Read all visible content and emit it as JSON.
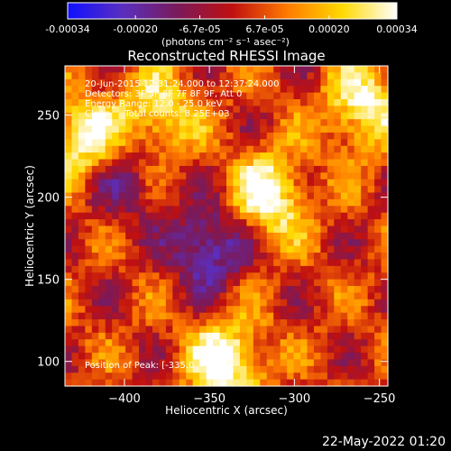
{
  "colorbar": {
    "ticks": [
      "-0.00034",
      "-0.00020",
      "-6.7e-05",
      "6.7e-05",
      "0.00020",
      "0.00034"
    ],
    "tick_values": [
      -0.00034,
      -0.0002,
      -6.7e-05,
      6.7e-05,
      0.0002,
      0.00034
    ],
    "units": "(photons cm⁻² s⁻¹ asec⁻²)",
    "colors": [
      "#1010ff",
      "#5a2fc0",
      "#7a1a5a",
      "#c01010",
      "#ff7a00",
      "#ffd900",
      "#ffffff"
    ]
  },
  "title": "Reconstructed RHESSI Image",
  "annotations": {
    "time_range": "20-Jun-2015 12:31:24.000 to 12:37:24.000",
    "detectors": "Detectors: 3F 5F 6F 7F 8F 9F, Att 0",
    "energy_range": "Energy Range: 12.0 - 25.0 keV",
    "clean_counts": "Clean     Total counts: 8.25E+03",
    "peak_position": "Position of Peak: [-335.0"
  },
  "chart_data": {
    "type": "heatmap",
    "title": "Reconstructed RHESSI Image",
    "xlabel": "Heliocentric X (arcsec)",
    "ylabel": "Heliocentric Y (arcsec)",
    "xlim": [
      -435,
      -245
    ],
    "ylim": [
      85,
      280
    ],
    "x_ticks": [
      -400,
      -350,
      -300,
      -250
    ],
    "y_ticks": [
      100,
      150,
      200,
      250
    ],
    "x_tick_labels": [
      "−400",
      "−350",
      "−300",
      "−250"
    ],
    "y_tick_labels": [
      "100",
      "150",
      "200",
      "250"
    ],
    "colorbar_range": [
      -0.00034,
      0.00034
    ],
    "grid_size": [
      48,
      48
    ],
    "features": [
      {
        "x": -340,
        "y": 100,
        "intensity": 1.0
      },
      {
        "x": -315,
        "y": 200,
        "intensity": 0.95
      },
      {
        "x": -425,
        "y": 235,
        "intensity": 0.9
      },
      {
        "x": -380,
        "y": 250,
        "intensity": 0.75
      },
      {
        "x": -260,
        "y": 255,
        "intensity": 0.85
      },
      {
        "x": -350,
        "y": 170,
        "intensity": -0.9
      },
      {
        "x": -400,
        "y": 210,
        "intensity": -0.5
      }
    ]
  },
  "timestamp": "22-May-2022 01:20"
}
